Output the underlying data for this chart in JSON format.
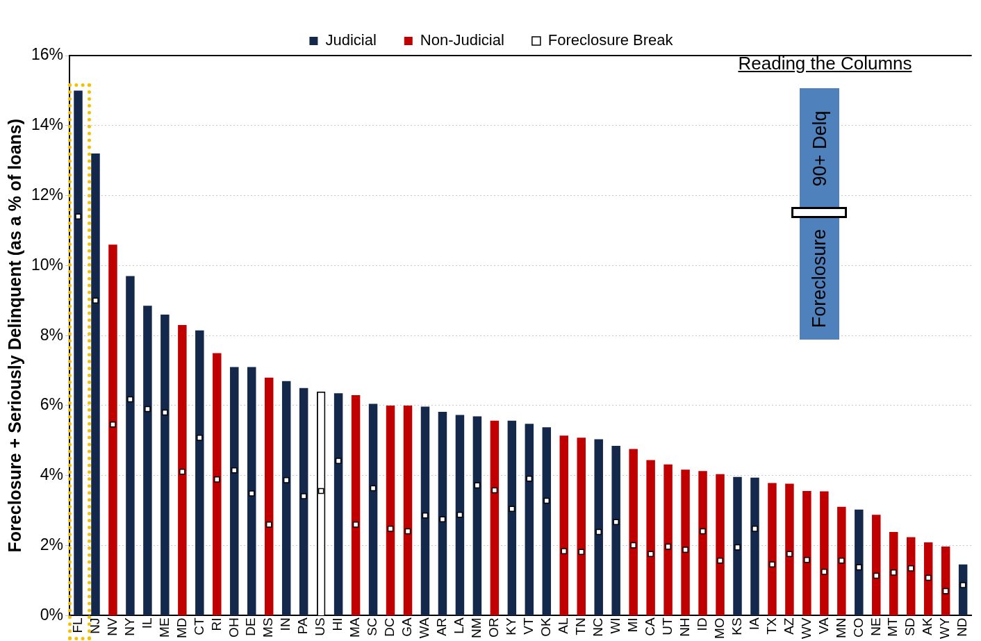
{
  "chart_data": {
    "type": "bar",
    "ylabel": "Foreclosure + Seriously Delinquent (as a % of loans)",
    "categories": [
      "FL",
      "NJ",
      "NV",
      "NY",
      "IL",
      "ME",
      "MD",
      "CT",
      "RI",
      "OH",
      "DE",
      "MS",
      "IN",
      "PA",
      "US",
      "HI",
      "MA",
      "SC",
      "DC",
      "GA",
      "WA",
      "AR",
      "LA",
      "NM",
      "OR",
      "KY",
      "VT",
      "OK",
      "AL",
      "TN",
      "NC",
      "WI",
      "MI",
      "CA",
      "UT",
      "NH",
      "ID",
      "MO",
      "KS",
      "IA",
      "TX",
      "AZ",
      "WV",
      "VA",
      "MN",
      "CO",
      "NE",
      "MT",
      "SD",
      "AK",
      "WY",
      "ND"
    ],
    "series": [
      {
        "name": "Judicial",
        "color": "#14284b",
        "values": [
          15.0,
          13.2,
          null,
          9.7,
          8.85,
          8.6,
          null,
          8.15,
          null,
          7.1,
          7.1,
          null,
          6.7,
          6.5,
          null,
          6.35,
          null,
          6.05,
          null,
          null,
          5.97,
          5.82,
          5.73,
          5.69,
          null,
          5.57,
          5.48,
          5.38,
          null,
          null,
          5.04,
          4.85,
          null,
          null,
          null,
          null,
          null,
          null,
          3.96,
          3.94,
          null,
          null,
          null,
          null,
          null,
          3.03,
          null,
          null,
          null,
          null,
          null,
          1.46
        ]
      },
      {
        "name": "Non-Judicial",
        "color": "#c00000",
        "values": [
          null,
          null,
          10.6,
          null,
          null,
          null,
          8.3,
          null,
          7.5,
          null,
          null,
          6.8,
          null,
          null,
          null,
          null,
          6.3,
          null,
          6.0,
          6.0,
          null,
          null,
          null,
          null,
          5.57,
          null,
          null,
          null,
          5.14,
          5.08,
          null,
          null,
          4.76,
          4.44,
          4.32,
          4.17,
          4.13,
          4.04,
          null,
          null,
          3.79,
          3.77,
          3.56,
          3.55,
          3.11,
          null,
          2.88,
          2.39,
          2.24,
          2.09,
          1.97,
          null
        ]
      },
      {
        "color": "#ffffff",
        "values": [
          null,
          null,
          null,
          null,
          null,
          null,
          null,
          null,
          null,
          null,
          null,
          null,
          null,
          null,
          6.4,
          null,
          null,
          null,
          null,
          null,
          null,
          null,
          null,
          null,
          null,
          null,
          null,
          null,
          null,
          null,
          null,
          null,
          null,
          null,
          null,
          null,
          null,
          null,
          null,
          null,
          null,
          null,
          null,
          null,
          null,
          null,
          null,
          null,
          null,
          null,
          null,
          null
        ]
      },
      {
        "name": "Foreclosure Break",
        "type": "scatter",
        "color": "#ffffff",
        "values": [
          11.4,
          9.0,
          5.46,
          6.18,
          5.9,
          5.8,
          4.11,
          5.08,
          3.89,
          4.15,
          3.49,
          2.6,
          3.87,
          3.41,
          3.56,
          4.42,
          2.6,
          3.64,
          2.48,
          2.41,
          2.86,
          2.75,
          2.88,
          3.72,
          3.58,
          3.05,
          3.91,
          3.28,
          1.84,
          1.82,
          2.39,
          2.67,
          2.01,
          1.76,
          1.97,
          1.88,
          2.41,
          1.57,
          1.95,
          2.48,
          1.46,
          1.76,
          1.59,
          1.25,
          1.57,
          1.38,
          1.14,
          1.23,
          1.35,
          1.08,
          0.7,
          0.87
        ]
      }
    ],
    "ylim": [
      0,
      16
    ],
    "yticks": [
      {
        "value": 0,
        "label": "0%"
      },
      {
        "value": 2,
        "label": "2%"
      },
      {
        "value": 4,
        "label": "4%"
      },
      {
        "value": 6,
        "label": "6%"
      },
      {
        "value": 8,
        "label": "8%"
      },
      {
        "value": 10,
        "label": "10%"
      },
      {
        "value": 12,
        "label": "12%"
      },
      {
        "value": 14,
        "label": "14%"
      },
      {
        "value": 16,
        "label": "16%"
      }
    ],
    "grid": "y",
    "legend": "top",
    "marker": "square",
    "annotations": [
      "Reading the Columns",
      "90+ Delq",
      "Foreclosure"
    ]
  }
}
